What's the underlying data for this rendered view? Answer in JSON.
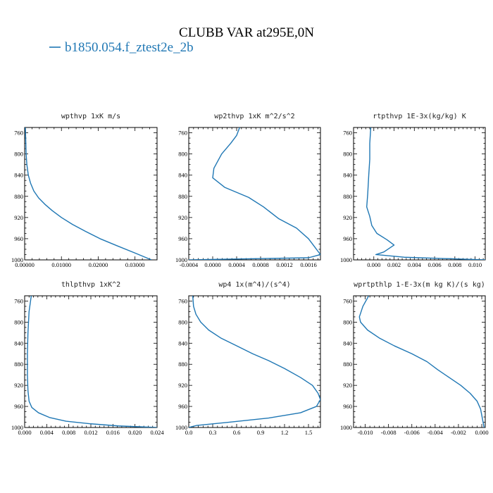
{
  "figure": {
    "title": "CLUBB VAR at295E,0N",
    "legend_label": "b1850.054.f_ztest2e_2b",
    "series_color": "#1f77b4"
  },
  "chart_data": [
    {
      "type": "line",
      "title": "wpthvp  1xK m/s",
      "xlim": [
        0,
        0.036
      ],
      "ylim": [
        1000,
        750
      ],
      "xticks": [
        0,
        0.01,
        0.02,
        0.03
      ],
      "xtick_labels": [
        "0.00000",
        "0.01000",
        "0.02000",
        "0.03000"
      ],
      "yticks": [
        760,
        800,
        840,
        880,
        920,
        960,
        1000
      ],
      "ytick_labels": [
        "760",
        "800",
        "840",
        "880",
        "920",
        "960",
        "1000"
      ],
      "series": [
        {
          "x": [
            0.0002,
            0.0003,
            0.0004,
            0.0006,
            0.001,
            0.0016,
            0.0025,
            0.0038,
            0.0055,
            0.0075,
            0.01,
            0.013,
            0.0165,
            0.0205,
            0.025,
            0.03,
            0.0345
          ],
          "y": [
            750,
            775,
            800,
            820,
            840,
            855,
            870,
            883,
            895,
            907,
            920,
            933,
            946,
            960,
            973,
            987,
            1000
          ]
        }
      ]
    },
    {
      "type": "line",
      "title": "wp2thvp  1xK m^2/s^2",
      "xlim": [
        -0.0004,
        0.0018
      ],
      "ylim": [
        1000,
        750
      ],
      "xticks": [
        -0.0004,
        0,
        0.0004,
        0.0008,
        0.0012,
        0.0016
      ],
      "xtick_labels": [
        "-0.0004",
        "0.0000",
        "0.0004",
        "0.0008",
        "0.0012",
        "0.0016"
      ],
      "yticks": [
        760,
        800,
        840,
        880,
        920,
        960,
        1000
      ],
      "ytick_labels": [
        "760",
        "800",
        "840",
        "880",
        "920",
        "960",
        "1000"
      ],
      "series": [
        {
          "x": [
            0.00045,
            0.0004,
            0.0003,
            0.00015,
            2e-05,
            0.0,
            0.0002,
            0.0006,
            0.00085,
            0.0011,
            0.0014,
            0.0016,
            0.0017,
            0.0018,
            0.0016,
            -0.0004
          ],
          "y": [
            750,
            765,
            780,
            800,
            827,
            845,
            863,
            882,
            900,
            922,
            940,
            960,
            975,
            990,
            996,
            1000
          ]
        }
      ]
    },
    {
      "type": "line",
      "title": "rtpthvp  1E-3x(kg/kg) K",
      "xlim": [
        -0.002,
        0.011
      ],
      "ylim": [
        1000,
        750
      ],
      "xticks": [
        0,
        0.002,
        0.004,
        0.006,
        0.008,
        0.01
      ],
      "xtick_labels": [
        "0.000",
        "0.002",
        "0.004",
        "0.006",
        "0.008",
        "0.010"
      ],
      "yticks": [
        760,
        800,
        840,
        880,
        920,
        960,
        1000
      ],
      "ytick_labels": [
        "760",
        "800",
        "840",
        "880",
        "920",
        "960",
        "1000"
      ],
      "series": [
        {
          "x": [
            -0.0003,
            -0.0004,
            -0.0004,
            -0.0005,
            -0.0006,
            -0.0007,
            -0.0004,
            -0.0002,
            0.0003,
            0.0013,
            0.002,
            0.001,
            0.0002,
            0.003,
            0.011
          ],
          "y": [
            750,
            780,
            810,
            840,
            875,
            900,
            918,
            935,
            950,
            962,
            972,
            985,
            990,
            995,
            1000
          ]
        }
      ]
    },
    {
      "type": "line",
      "title": "thlpthvp  1xK^2",
      "xlim": [
        0,
        0.024
      ],
      "ylim": [
        1000,
        750
      ],
      "xticks": [
        0,
        0.004,
        0.008,
        0.012,
        0.016,
        0.02,
        0.024
      ],
      "xtick_labels": [
        "0.000",
        "0.004",
        "0.008",
        "0.012",
        "0.016",
        "0.020",
        "0.024"
      ],
      "yticks": [
        760,
        800,
        840,
        880,
        920,
        960,
        1000
      ],
      "ytick_labels": [
        "760",
        "800",
        "840",
        "880",
        "920",
        "960",
        "1000"
      ],
      "series": [
        {
          "x": [
            0.0012,
            0.0008,
            0.0006,
            0.0005,
            0.0005,
            0.0006,
            0.0008,
            0.0013,
            0.0025,
            0.0045,
            0.0075,
            0.012,
            0.017,
            0.024
          ],
          "y": [
            750,
            780,
            820,
            860,
            900,
            930,
            950,
            962,
            972,
            981,
            988,
            993,
            997,
            1000
          ]
        }
      ]
    },
    {
      "type": "line",
      "title": "wp4  1x(m^4)/(s^4)",
      "xlim": [
        0,
        1.65
      ],
      "ylim": [
        1000,
        750
      ],
      "xticks": [
        0,
        0.3,
        0.6,
        0.9,
        1.2,
        1.5
      ],
      "xtick_labels": [
        "0.0",
        "0.3",
        "0.6",
        "0.9",
        "1.2",
        "1.5"
      ],
      "yticks": [
        760,
        800,
        840,
        880,
        920,
        960,
        1000
      ],
      "ytick_labels": [
        "760",
        "800",
        "840",
        "880",
        "920",
        "960",
        "1000"
      ],
      "series": [
        {
          "x": [
            0.05,
            0.06,
            0.09,
            0.15,
            0.25,
            0.4,
            0.6,
            0.8,
            1.0,
            1.2,
            1.4,
            1.55,
            1.62,
            1.65,
            1.6,
            1.4,
            1.0,
            0.5,
            0.1,
            0.0
          ],
          "y": [
            750,
            770,
            785,
            800,
            815,
            830,
            845,
            860,
            873,
            888,
            905,
            920,
            935,
            947,
            960,
            972,
            982,
            990,
            996,
            1000
          ]
        }
      ]
    },
    {
      "type": "line",
      "title": "wprtpthlp  1-E-3x(m kg K)/(s kg)",
      "xlim": [
        -0.011,
        0.0003
      ],
      "ylim": [
        1000,
        750
      ],
      "xticks": [
        -0.01,
        -0.008,
        -0.006,
        -0.004,
        -0.002,
        0
      ],
      "xtick_labels": [
        "-0.010",
        "-0.008",
        "-0.006",
        "-0.004",
        "-0.002",
        "0.000"
      ],
      "yticks": [
        760,
        800,
        840,
        880,
        920,
        960,
        1000
      ],
      "ytick_labels": [
        "760",
        "800",
        "840",
        "880",
        "920",
        "960",
        "1000"
      ],
      "series": [
        {
          "x": [
            -0.0097,
            -0.0102,
            -0.0105,
            -0.0104,
            -0.0098,
            -0.0088,
            -0.0075,
            -0.006,
            -0.0047,
            -0.0038,
            -0.0028,
            -0.0018,
            -0.001,
            -0.0004,
            -0.0001,
            0.0002
          ],
          "y": [
            750,
            770,
            790,
            800,
            815,
            830,
            845,
            860,
            875,
            890,
            905,
            920,
            935,
            950,
            965,
            1000
          ]
        }
      ]
    }
  ]
}
